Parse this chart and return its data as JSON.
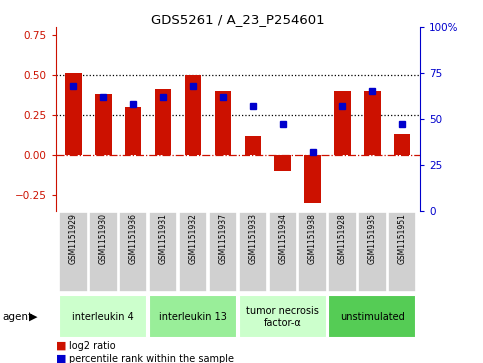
{
  "title": "GDS5261 / A_23_P254601",
  "samples": [
    "GSM1151929",
    "GSM1151930",
    "GSM1151936",
    "GSM1151931",
    "GSM1151932",
    "GSM1151937",
    "GSM1151933",
    "GSM1151934",
    "GSM1151938",
    "GSM1151928",
    "GSM1151935",
    "GSM1151951"
  ],
  "log2_ratio": [
    0.51,
    0.38,
    0.3,
    0.41,
    0.5,
    0.4,
    0.12,
    -0.1,
    -0.3,
    0.4,
    0.4,
    0.13
  ],
  "percentile_rank": [
    68,
    62,
    58,
    62,
    68,
    62,
    57,
    47,
    32,
    57,
    65,
    47
  ],
  "agents": [
    {
      "label": "interleukin 4",
      "start": 0,
      "end": 3,
      "color": "#ccffcc"
    },
    {
      "label": "interleukin 13",
      "start": 3,
      "end": 6,
      "color": "#99ee99"
    },
    {
      "label": "tumor necrosis\nfactor-α",
      "start": 6,
      "end": 9,
      "color": "#ccffcc"
    },
    {
      "label": "unstimulated",
      "start": 9,
      "end": 12,
      "color": "#55cc55"
    }
  ],
  "bar_color": "#cc1100",
  "dot_color": "#0000cc",
  "ylim_left": [
    -0.35,
    0.8
  ],
  "ylim_right": [
    0,
    100
  ],
  "yticks_left": [
    -0.25,
    0.0,
    0.25,
    0.5,
    0.75
  ],
  "yticks_right": [
    0,
    25,
    50,
    75,
    100
  ],
  "hline_dotted": [
    0.25,
    0.5
  ],
  "hline_dashed": 0.0,
  "bar_width": 0.55,
  "agent_label": "agent",
  "sample_box_color": "#d0d0d0",
  "fig_width": 4.83,
  "fig_height": 3.63,
  "fig_dpi": 100
}
